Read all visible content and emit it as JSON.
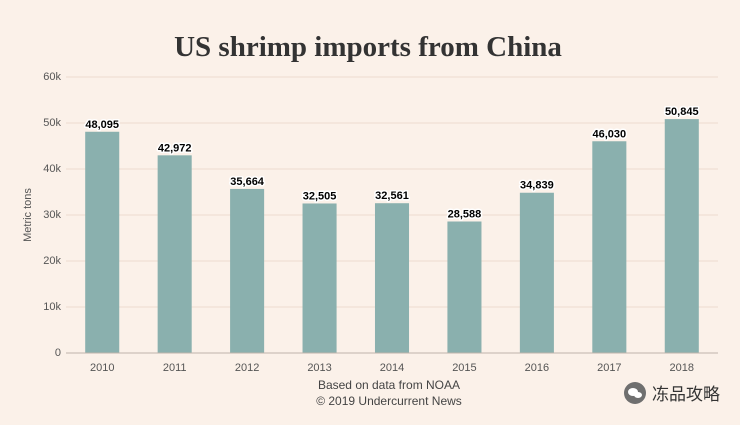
{
  "chart_data": {
    "type": "bar",
    "title": "US shrimp imports from China",
    "ylabel": "Metric tons",
    "xlabel": "",
    "categories": [
      "2010",
      "2011",
      "2012",
      "2013",
      "2014",
      "2015",
      "2016",
      "2017",
      "2018"
    ],
    "values": [
      48095,
      42972,
      35664,
      32505,
      32561,
      28588,
      34839,
      46030,
      50845
    ],
    "value_labels": [
      "48,095",
      "42,972",
      "35,664",
      "32,505",
      "32,561",
      "28,588",
      "34,839",
      "46,030",
      "50,845"
    ],
    "ylim": [
      0,
      60000
    ],
    "yticks": [
      0,
      10000,
      20000,
      30000,
      40000,
      50000,
      60000
    ],
    "ytick_labels": [
      "0",
      "10k",
      "20k",
      "30k",
      "40k",
      "50k",
      "60k"
    ],
    "grid": true,
    "legend": "none",
    "bar_color": "#8ab0ae",
    "source": "Based on data from NOAA",
    "copyright": "© 2019 Undercurrent News"
  },
  "watermark": {
    "text": "冻品攻略",
    "icon": "wechat-icon"
  }
}
